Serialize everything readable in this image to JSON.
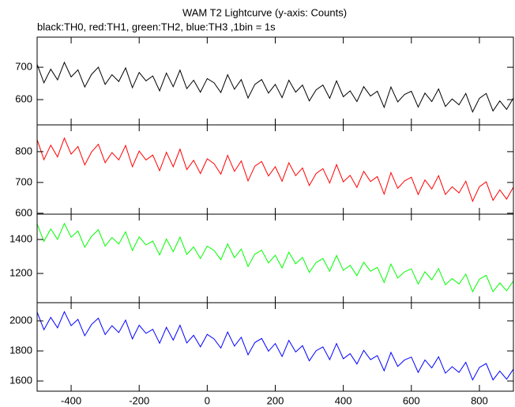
{
  "title": "WAM T2 Lightcurve (y-axis: Counts)",
  "subtitle": "black:TH0, red:TH1, green:TH2, blue:TH3 ,1bin = 1s",
  "chart_data": [
    {
      "type": "line",
      "xlim": [
        -500,
        900
      ],
      "ylim": [
        522,
        793
      ],
      "yticks": [
        600,
        700
      ],
      "x": [
        -500,
        -480,
        -460,
        -440,
        -420,
        -400,
        -380,
        -360,
        -340,
        -320,
        -300,
        -280,
        -260,
        -240,
        -220,
        -200,
        -180,
        -160,
        -140,
        -120,
        -100,
        -80,
        -60,
        -40,
        -20,
        0,
        20,
        40,
        60,
        80,
        100,
        120,
        140,
        160,
        180,
        200,
        220,
        240,
        260,
        280,
        300,
        320,
        340,
        360,
        380,
        400,
        420,
        440,
        460,
        480,
        500,
        520,
        540,
        560,
        580,
        600,
        620,
        640,
        660,
        680,
        700,
        720,
        740,
        760,
        780,
        800,
        820,
        840,
        860,
        880,
        900
      ],
      "series": [
        {
          "color": "#000000",
          "values": [
            709,
            652,
            694,
            661,
            715,
            670,
            692,
            639,
            678,
            700,
            647,
            677,
            656,
            698,
            637,
            684,
            658,
            673,
            627,
            682,
            640,
            691,
            634,
            660,
            623,
            665,
            652,
            622,
            677,
            632,
            662,
            605,
            647,
            662,
            620,
            647,
            606,
            660,
            623,
            645,
            596,
            630,
            645,
            604,
            658,
            609,
            627,
            594,
            640,
            611,
            626,
            576,
            639,
            593,
            616,
            626,
            577,
            620,
            594,
            633,
            579,
            602,
            584,
            619,
            562,
            604,
            619,
            565,
            596,
            570,
            605
          ]
        }
      ]
    },
    {
      "type": "line",
      "xlim": [
        -500,
        900
      ],
      "ylim": [
        597,
        887
      ],
      "yticks": [
        600,
        700,
        800
      ],
      "x": [
        -500,
        -480,
        -460,
        -440,
        -420,
        -400,
        -380,
        -360,
        -340,
        -320,
        -300,
        -280,
        -260,
        -240,
        -220,
        -200,
        -180,
        -160,
        -140,
        -120,
        -100,
        -80,
        -60,
        -40,
        -20,
        0,
        20,
        40,
        60,
        80,
        100,
        120,
        140,
        160,
        180,
        200,
        220,
        240,
        260,
        280,
        300,
        320,
        340,
        360,
        380,
        400,
        420,
        440,
        460,
        480,
        500,
        520,
        540,
        560,
        580,
        600,
        620,
        640,
        660,
        680,
        700,
        720,
        740,
        760,
        780,
        800,
        820,
        840,
        860,
        880,
        900
      ],
      "series": [
        {
          "color": "#ff0000",
          "values": [
            839,
            774,
            821,
            783,
            844,
            792,
            817,
            757,
            799,
            824,
            764,
            797,
            773,
            820,
            751,
            802,
            773,
            789,
            738,
            798,
            751,
            808,
            742,
            772,
            729,
            777,
            761,
            727,
            788,
            736,
            770,
            705,
            753,
            768,
            721,
            751,
            704,
            764,
            722,
            747,
            690,
            729,
            745,
            698,
            758,
            702,
            723,
            684,
            736,
            703,
            719,
            662,
            732,
            681,
            705,
            717,
            661,
            708,
            679,
            722,
            661,
            686,
            666,
            704,
            639,
            686,
            702,
            642,
            676,
            646,
            685
          ]
        }
      ]
    },
    {
      "type": "line",
      "xlim": [
        -500,
        900
      ],
      "ylim": [
        1028,
        1549
      ],
      "yticks": [
        1200,
        1400
      ],
      "x": [
        -500,
        -480,
        -460,
        -440,
        -420,
        -400,
        -380,
        -360,
        -340,
        -320,
        -300,
        -280,
        -260,
        -240,
        -220,
        -200,
        -180,
        -160,
        -140,
        -120,
        -100,
        -80,
        -60,
        -40,
        -20,
        0,
        20,
        40,
        60,
        80,
        100,
        120,
        140,
        160,
        180,
        200,
        220,
        240,
        260,
        280,
        300,
        320,
        340,
        360,
        380,
        400,
        420,
        440,
        460,
        480,
        500,
        520,
        540,
        560,
        580,
        600,
        620,
        640,
        660,
        680,
        700,
        720,
        740,
        760,
        780,
        800,
        820,
        840,
        860,
        880,
        900
      ],
      "series": [
        {
          "color": "#00ff00",
          "values": [
            1492,
            1389,
            1462,
            1401,
            1494,
            1413,
            1450,
            1354,
            1419,
            1457,
            1361,
            1412,
            1373,
            1445,
            1335,
            1415,
            1368,
            1391,
            1309,
            1403,
            1328,
            1414,
            1312,
            1356,
            1288,
            1361,
            1335,
            1281,
            1374,
            1293,
            1344,
            1241,
            1314,
            1337,
            1262,
            1307,
            1232,
            1325,
            1257,
            1295,
            1206,
            1264,
            1288,
            1213,
            1306,
            1218,
            1248,
            1187,
            1266,
            1213,
            1236,
            1147,
            1255,
            1173,
            1210,
            1227,
            1138,
            1210,
            1163,
            1229,
            1133,
            1170,
            1138,
            1196,
            1093,
            1166,
            1189,
            1093,
            1144,
            1098,
            1156
          ]
        }
      ]
    },
    {
      "type": "line",
      "xlim": [
        -500,
        900
      ],
      "ylim": [
        1532,
        2121
      ],
      "yticks": [
        1600,
        1800,
        2000
      ],
      "xticks": [
        -400,
        -200,
        0,
        200,
        400,
        600,
        800
      ],
      "x": [
        -500,
        -480,
        -460,
        -440,
        -420,
        -400,
        -380,
        -360,
        -340,
        -320,
        -300,
        -280,
        -260,
        -240,
        -220,
        -200,
        -180,
        -160,
        -140,
        -120,
        -100,
        -80,
        -60,
        -40,
        -20,
        0,
        20,
        40,
        60,
        80,
        100,
        120,
        140,
        160,
        180,
        200,
        220,
        240,
        260,
        280,
        300,
        320,
        340,
        360,
        380,
        400,
        420,
        440,
        460,
        480,
        500,
        520,
        540,
        560,
        580,
        600,
        620,
        640,
        660,
        680,
        700,
        720,
        740,
        760,
        780,
        800,
        820,
        840,
        860,
        880,
        900
      ],
      "series": [
        {
          "color": "#0000ff",
          "values": [
            2058,
            1941,
            2023,
            1954,
            2061,
            1968,
            2010,
            1901,
            1976,
            2018,
            1909,
            1968,
            1922,
            2005,
            1880,
            1971,
            1917,
            1944,
            1851,
            1957,
            1872,
            1971,
            1853,
            1904,
            1827,
            1910,
            1880,
            1819,
            1926,
            1832,
            1891,
            1774,
            1856,
            1883,
            1798,
            1849,
            1763,
            1870,
            1793,
            1835,
            1734,
            1801,
            1827,
            1742,
            1849,
            1748,
            1782,
            1713,
            1804,
            1742,
            1769,
            1668,
            1790,
            1697,
            1740,
            1759,
            1657,
            1740,
            1687,
            1761,
            1652,
            1695,
            1657,
            1724,
            1607,
            1690,
            1716,
            1607,
            1666,
            1612,
            1679
          ]
        }
      ]
    }
  ]
}
